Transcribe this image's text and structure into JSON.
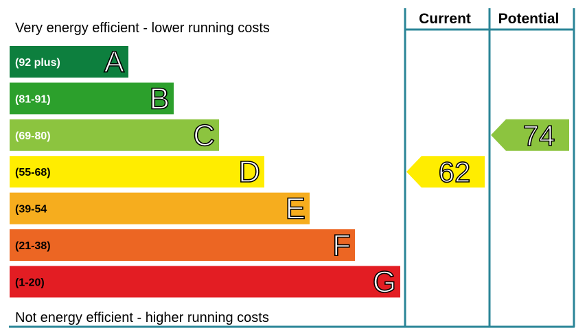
{
  "chart_data": {
    "type": "bar",
    "top_caption": "Very energy efficient - lower running costs",
    "bottom_caption": "Not energy efficient - higher running costs",
    "columns": {
      "current": "Current",
      "potential": "Potential"
    },
    "bands": [
      {
        "letter": "A",
        "range": "(92 plus)",
        "min": 92,
        "max": null,
        "color": "#0d7f3e",
        "text_color": "#ffffff"
      },
      {
        "letter": "B",
        "range": "(81-91)",
        "min": 81,
        "max": 91,
        "color": "#2ca02c",
        "text_color": "#ffffff"
      },
      {
        "letter": "C",
        "range": "(69-80)",
        "min": 69,
        "max": 80,
        "color": "#8cc43f",
        "text_color": "#ffffff"
      },
      {
        "letter": "D",
        "range": "(55-68)",
        "min": 55,
        "max": 68,
        "color": "#ffed00",
        "text_color": "#000000"
      },
      {
        "letter": "E",
        "range": "(39-54",
        "min": 39,
        "max": 54,
        "color": "#f6ad1e",
        "text_color": "#000000"
      },
      {
        "letter": "F",
        "range": "(21-38)",
        "min": 21,
        "max": 38,
        "color": "#ec6623",
        "text_color": "#000000"
      },
      {
        "letter": "G",
        "range": "(1-20)",
        "min": 1,
        "max": 20,
        "color": "#e31d23",
        "text_color": "#000000"
      }
    ],
    "ratings": {
      "current": {
        "value": 62,
        "band": "D",
        "color": "#ffed00"
      },
      "potential": {
        "value": 74,
        "band": "C",
        "color": "#8cc43f"
      }
    }
  },
  "colors": {
    "frame": "#2a8597"
  }
}
